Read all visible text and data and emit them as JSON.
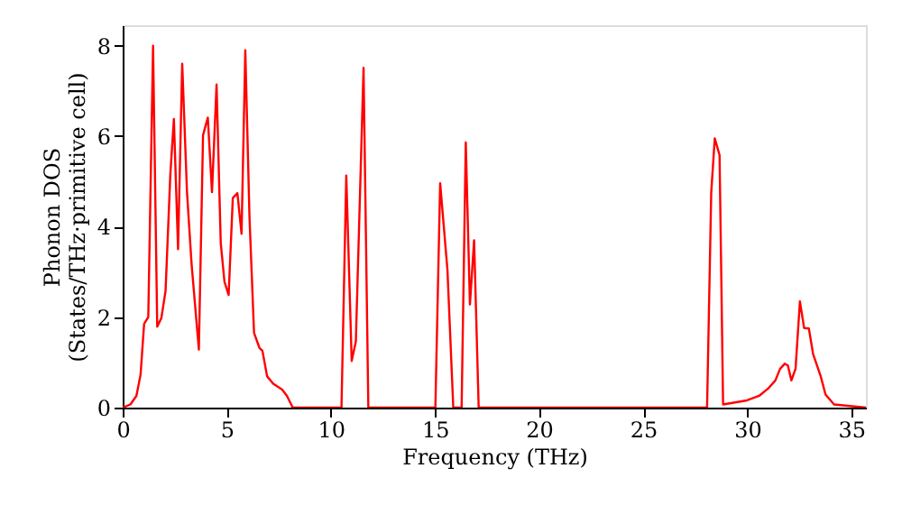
{
  "chart_data": {
    "type": "line",
    "xlabel": "Frequency (THz)",
    "ylabel": [
      "Phonon DOS",
      "(States/THz·primitive cell)"
    ],
    "xlim": [
      0,
      35.7
    ],
    "ylim": [
      0,
      8.45
    ],
    "xticks": [
      0,
      5,
      10,
      15,
      20,
      25,
      30,
      35
    ],
    "yticks": [
      0,
      2,
      4,
      6,
      8
    ],
    "grid": false,
    "series": [
      {
        "color": "#ff0000",
        "x": [
          0,
          0.37,
          0.66,
          0.86,
          1.03,
          1.23,
          1.46,
          1.66,
          1.86,
          2.06,
          2.29,
          2.46,
          2.66,
          2.86,
          3.09,
          3.31,
          3.66,
          3.86,
          4.09,
          4.29,
          4.51,
          4.71,
          4.89,
          5.09,
          5.29,
          5.51,
          5.71,
          5.89,
          6.09,
          6.31,
          6.57,
          6.71,
          6.94,
          7.23,
          7.66,
          7.89,
          8.17,
          10.51,
          10.74,
          11.0,
          11.2,
          11.57,
          11.8,
          15.02,
          15.25,
          15.6,
          15.88,
          16.28,
          16.48,
          16.68,
          16.88,
          17.1,
          28.07,
          28.27,
          28.44,
          28.67,
          28.84,
          29.99,
          30.57,
          31.0,
          31.35,
          31.58,
          31.8,
          31.95,
          32.12,
          32.32,
          32.53,
          32.73,
          32.96,
          33.16,
          33.53,
          33.76,
          34.17,
          35.7
        ],
        "values": [
          0,
          0.07,
          0.26,
          0.73,
          1.85,
          2.0,
          8.0,
          1.79,
          1.98,
          2.58,
          5.16,
          6.38,
          3.5,
          7.6,
          4.76,
          3.17,
          1.28,
          6.02,
          6.41,
          4.76,
          7.14,
          3.64,
          2.78,
          2.49,
          4.63,
          4.74,
          3.84,
          7.9,
          4.23,
          1.65,
          1.32,
          1.26,
          0.69,
          0.53,
          0.4,
          0.26,
          0,
          0,
          5.13,
          1.03,
          1.46,
          7.51,
          0,
          0,
          4.96,
          3.04,
          0,
          0,
          5.86,
          2.28,
          3.7,
          0,
          0,
          4.76,
          5.95,
          5.58,
          0.07,
          0.16,
          0.26,
          0.42,
          0.6,
          0.86,
          0.97,
          0.93,
          0.6,
          0.86,
          2.35,
          1.76,
          1.75,
          1.19,
          0.69,
          0.29,
          0.07,
          0
        ]
      }
    ]
  }
}
